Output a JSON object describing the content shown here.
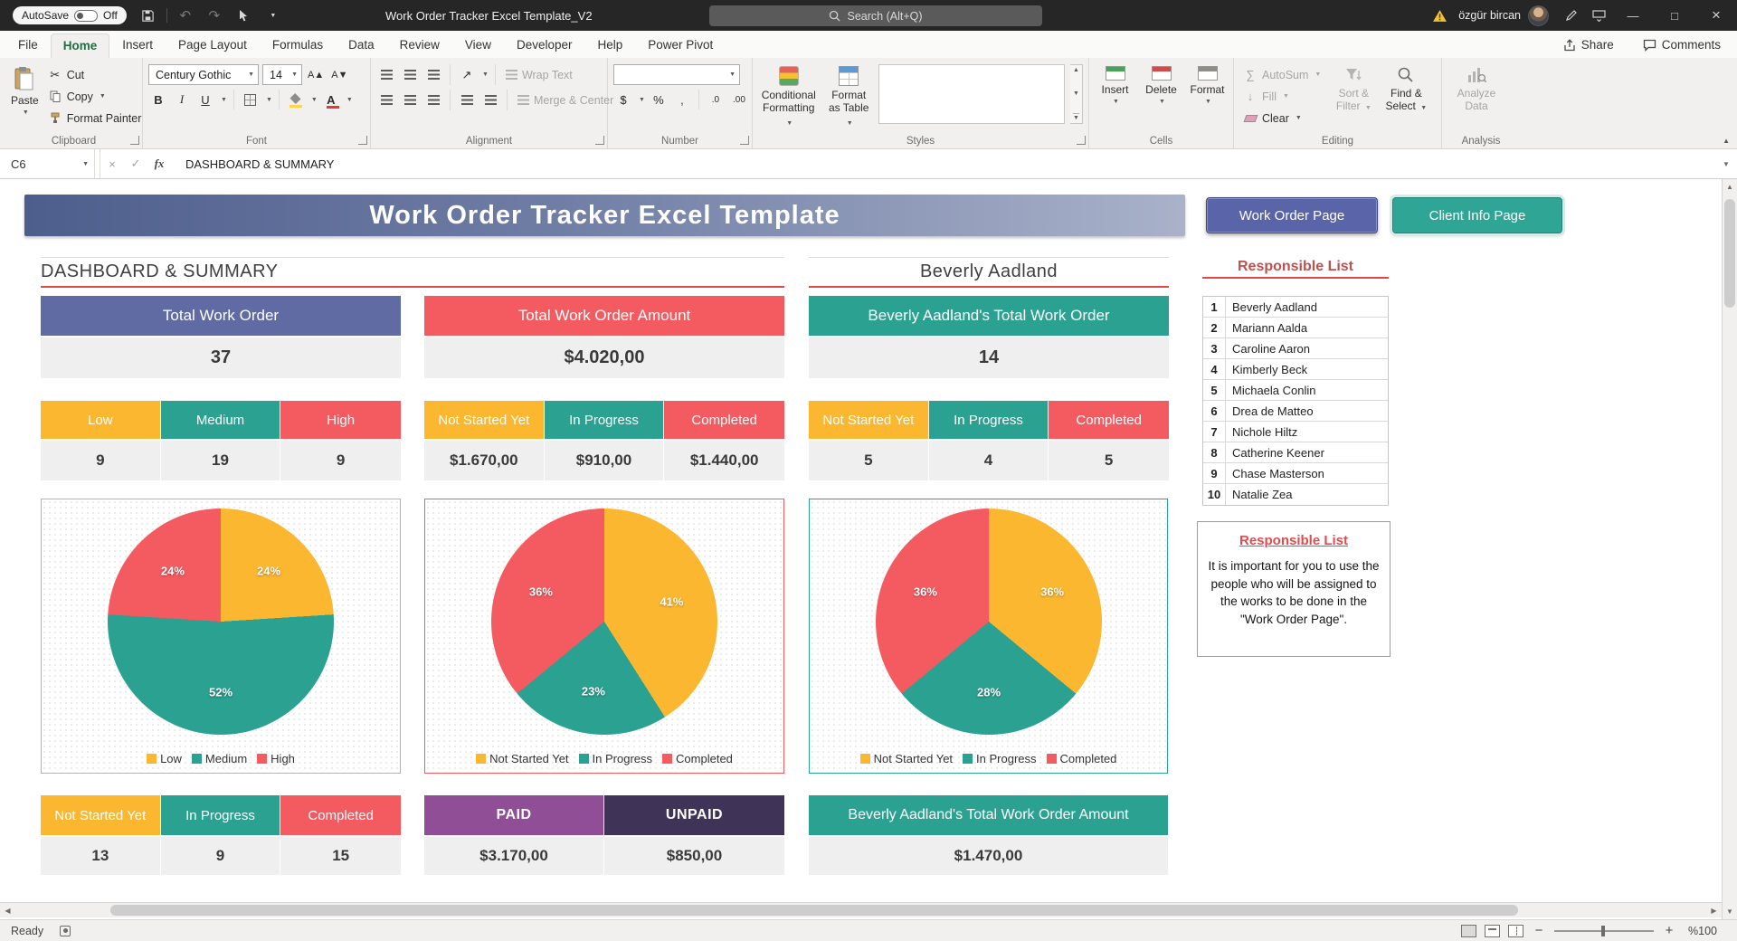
{
  "titlebar": {
    "autosave_label": "AutoSave",
    "autosave_state": "Off",
    "document_title": "Work Order Tracker Excel Template_V2",
    "search_placeholder": "Search (Alt+Q)",
    "user_name": "özgür bircan"
  },
  "ribbon": {
    "tabs": [
      "File",
      "Home",
      "Insert",
      "Page Layout",
      "Formulas",
      "Data",
      "Review",
      "View",
      "Developer",
      "Help",
      "Power Pivot"
    ],
    "active_tab": "Home",
    "share_label": "Share",
    "comments_label": "Comments",
    "clipboard": {
      "label": "Clipboard",
      "paste": "Paste",
      "cut": "Cut",
      "copy": "Copy",
      "format_painter": "Format Painter"
    },
    "font": {
      "label": "Font",
      "font_name": "Century Gothic",
      "font_size": "14"
    },
    "alignment": {
      "label": "Alignment",
      "wrap_text": "Wrap Text",
      "merge_center": "Merge & Center"
    },
    "number": {
      "label": "Number"
    },
    "styles": {
      "label": "Styles",
      "conditional_formatting": "Conditional Formatting",
      "format_as_table": "Format as Table"
    },
    "cells": {
      "label": "Cells",
      "insert": "Insert",
      "delete": "Delete",
      "format": "Format"
    },
    "editing": {
      "label": "Editing",
      "autosum": "AutoSum",
      "fill": "Fill",
      "clear": "Clear",
      "sort_filter": "Sort & Filter",
      "find_select": "Find & Select"
    },
    "analysis": {
      "label": "Analysis",
      "analyze_data": "Analyze Data"
    }
  },
  "formula_bar": {
    "cell_reference": "C6",
    "formula_text": "DASHBOARD & SUMMARY"
  },
  "sheet": {
    "banner_title": "Work Order Tracker Excel Template",
    "nav_buttons": {
      "work_order": "Work Order Page",
      "work_order_color": "#5a64a8",
      "client_info": "Client Info Page",
      "client_info_color": "#2fa596"
    },
    "left_section_title": "DASHBOARD & SUMMARY",
    "client_section_title": "Beverly Aadland",
    "cards": [
      {
        "title": "Total Work Order",
        "value": "37",
        "color": "#5f6ba2"
      },
      {
        "title": "Total Work Order Amount",
        "value": "$4.020,00",
        "color": "#f45b60"
      },
      {
        "title": "Beverly Aadland's Total Work Order",
        "value": "14",
        "color": "#2aa191"
      }
    ],
    "priority_table": {
      "headers": [
        "Low",
        "Medium",
        "High"
      ],
      "values": [
        "9",
        "19",
        "9"
      ],
      "colors": [
        "#fcb730",
        "#2aa191",
        "#f45b60"
      ]
    },
    "status_amount_table": {
      "headers": [
        "Not Started Yet",
        "In Progress",
        "Completed"
      ],
      "values": [
        "$1.670,00",
        "$910,00",
        "$1.440,00"
      ],
      "colors": [
        "#fcb730",
        "#2aa191",
        "#f45b60"
      ]
    },
    "client_status_table": {
      "headers": [
        "Not Started Yet",
        "In Progress",
        "Completed"
      ],
      "values": [
        "5",
        "4",
        "5"
      ],
      "colors": [
        "#fcb730",
        "#2aa191",
        "#f45b60"
      ]
    },
    "status_count_table": {
      "headers": [
        "Not Started Yet",
        "In Progress",
        "Completed"
      ],
      "values": [
        "13",
        "9",
        "15"
      ],
      "colors": [
        "#fcb730",
        "#2aa191",
        "#f45b60"
      ]
    },
    "payment_table": {
      "headers": [
        "PAID",
        "UNPAID"
      ],
      "values": [
        "$3.170,00",
        "$850,00"
      ],
      "colors": [
        "#8f4e96",
        "#3f3457"
      ]
    },
    "client_amount_card": {
      "title": "Beverly Aadland's Total Work Order Amount",
      "value": "$1.470,00",
      "color": "#2aa191"
    },
    "responsible_panel": {
      "title": "Responsible List",
      "names": [
        "Beverly Aadland",
        "Mariann Aalda",
        "Caroline Aaron",
        "Kimberly Beck",
        "Michaela Conlin",
        "Drea de Matteo",
        "Nichole Hiltz",
        "Catherine Keener",
        "Chase Masterson",
        "Natalie Zea"
      ]
    },
    "info_box": {
      "title": "Responsible List",
      "text": "It is important for you to use the people who will be assigned to the works to be done in the \"Work Order Page\"."
    }
  },
  "chart_data": [
    {
      "type": "pie",
      "legend_position": "bottom",
      "slices": [
        {
          "name": "Low",
          "value": 24,
          "color": "#fcb730"
        },
        {
          "name": "Medium",
          "value": 52,
          "color": "#2aa191"
        },
        {
          "name": "High",
          "value": 24,
          "color": "#f45b60"
        }
      ]
    },
    {
      "type": "pie",
      "legend_position": "bottom",
      "slices": [
        {
          "name": "Not Started Yet",
          "value": 41,
          "color": "#fcb730"
        },
        {
          "name": "In Progress",
          "value": 23,
          "color": "#2aa191"
        },
        {
          "name": "Completed",
          "value": 36,
          "color": "#f45b60"
        }
      ]
    },
    {
      "type": "pie",
      "legend_position": "bottom",
      "slices": [
        {
          "name": "Not Started Yet",
          "value": 36,
          "color": "#fcb730"
        },
        {
          "name": "In Progress",
          "value": 28,
          "color": "#2aa191"
        },
        {
          "name": "Completed",
          "value": 36,
          "color": "#f45b60"
        }
      ]
    }
  ],
  "status_bar": {
    "mode": "Ready",
    "zoom_level": "%100"
  },
  "icons": {
    "chevron_down": "▼",
    "chevron_up": "▲",
    "arrow_left": "◀",
    "arrow_right": "▶",
    "undo": "↶",
    "redo": "↷",
    "cut": "✂",
    "autosum": "∑",
    "dollar": "$",
    "percent": "%",
    "comma": ",",
    "decimal_increase": ".0",
    "decimal_decrease": ".00",
    "bold": "B",
    "italic": "I",
    "underline": "U",
    "orientation": "↗",
    "fill_down": "↓",
    "grow_font": "A▲",
    "shrink_font": "A▼",
    "check": "✓",
    "fx": "fx",
    "close": "×",
    "minimize": "—",
    "maximize": "□",
    "minus": "−",
    "plus": "+"
  }
}
